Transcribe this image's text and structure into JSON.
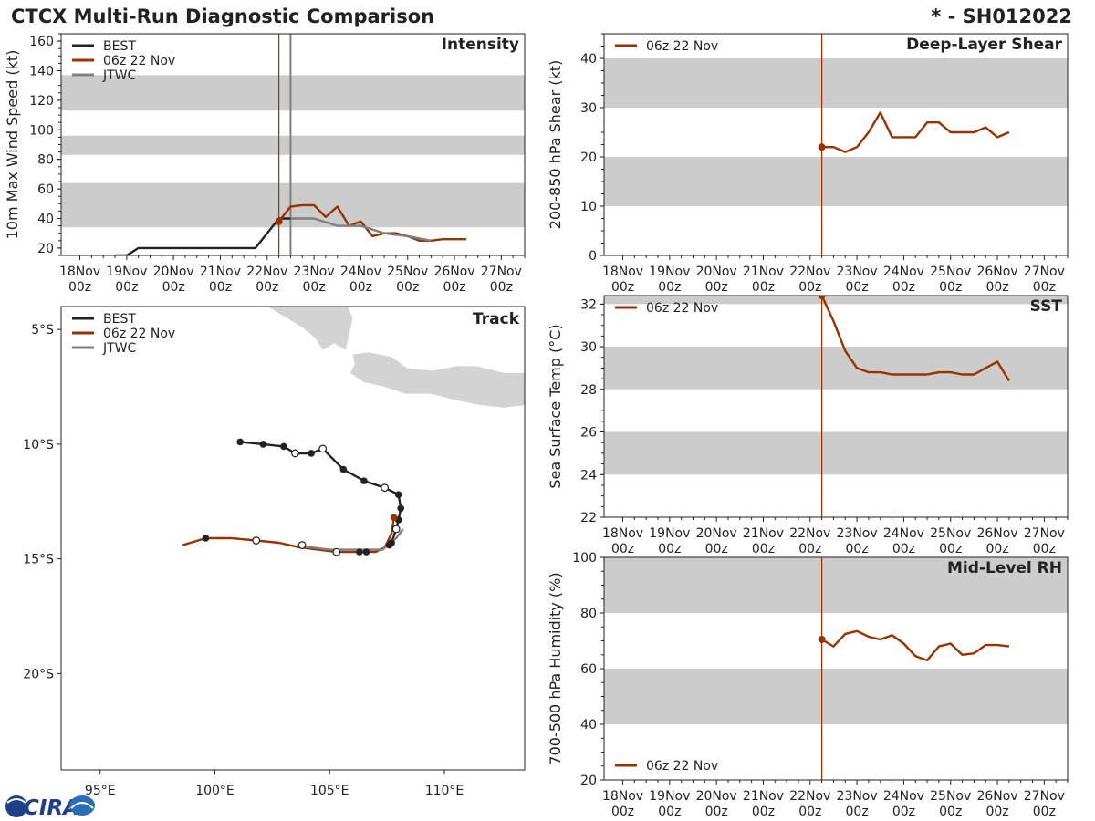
{
  "header": {
    "title": "CTCX Multi-Run Diagnostic Comparison",
    "storm_id": "* - SH012022"
  },
  "logo": {
    "text": "CIRA"
  },
  "colors": {
    "best": "#222222",
    "run": "#9a3100",
    "jtwc": "#7f7f7f",
    "band": "#cccccc",
    "land": "#d3d3d3"
  },
  "legend": {
    "best": "BEST",
    "run": "06z 22 Nov",
    "jtwc": "JTWC"
  },
  "time_axis": {
    "labels": [
      [
        "18Nov",
        "00z"
      ],
      [
        "19Nov",
        "00z"
      ],
      [
        "20Nov",
        "00z"
      ],
      [
        "21Nov",
        "00z"
      ],
      [
        "22Nov",
        "00z"
      ],
      [
        "23Nov",
        "00z"
      ],
      [
        "24Nov",
        "00z"
      ],
      [
        "25Nov",
        "00z"
      ],
      [
        "26Nov",
        "00z"
      ],
      [
        "27Nov",
        "00z"
      ]
    ]
  },
  "chart_data": [
    {
      "id": "intensity",
      "type": "line",
      "title": "Intensity",
      "ylabel": "10m Max Wind Speed (kt)",
      "xlim": [
        17.6,
        27.5
      ],
      "ylim": [
        15,
        165
      ],
      "yticks": [
        20,
        40,
        60,
        80,
        100,
        120,
        140,
        160
      ],
      "bands": [
        [
          34,
          64
        ],
        [
          83,
          96
        ],
        [
          113,
          137
        ]
      ],
      "init_lines": [
        22.25,
        22.5
      ],
      "legend_entries": [
        "best",
        "run",
        "jtwc"
      ],
      "series": [
        {
          "name": "BEST",
          "key": "best",
          "x": [
            18.75,
            19.0,
            19.25,
            21.75,
            22.25,
            22.5
          ],
          "y": [
            15,
            15,
            20,
            20,
            40,
            40
          ]
        },
        {
          "name": "06z 22 Nov",
          "key": "run",
          "x": [
            22.25,
            22.5,
            22.75,
            23.0,
            23.25,
            23.5,
            23.75,
            24.0,
            24.25,
            24.5,
            24.75,
            25.0,
            25.25,
            25.5,
            25.75,
            26.0,
            26.25
          ],
          "y": [
            38,
            48,
            49,
            49,
            41,
            48,
            35,
            38,
            28,
            30,
            30,
            28,
            25,
            25,
            26,
            26,
            26
          ],
          "start_marker": true
        },
        {
          "name": "JTWC",
          "key": "jtwc",
          "x": [
            22.5,
            23.0,
            23.5,
            24.0,
            24.5,
            25.0,
            25.5
          ],
          "y": [
            40,
            40,
            35,
            35,
            30,
            28,
            25
          ]
        }
      ]
    },
    {
      "id": "shear",
      "type": "line",
      "title": "Deep-Layer Shear",
      "ylabel": "200-850 hPa Shear (kt)",
      "xlim": [
        17.6,
        27.5
      ],
      "ylim": [
        0,
        45
      ],
      "yticks": [
        0,
        10,
        20,
        30,
        40
      ],
      "bands": [
        [
          10,
          20
        ],
        [
          30,
          40
        ]
      ],
      "init_lines": [
        22.25
      ],
      "legend_entries": [
        "run"
      ],
      "series": [
        {
          "name": "06z 22 Nov",
          "key": "run",
          "x": [
            22.25,
            22.5,
            22.75,
            23.0,
            23.25,
            23.5,
            23.75,
            24.0,
            24.25,
            24.5,
            24.75,
            25.0,
            25.25,
            25.5,
            25.75,
            26.0,
            26.25
          ],
          "y": [
            22,
            22,
            21,
            22,
            25,
            29,
            24,
            24,
            24,
            27,
            27,
            25,
            25,
            25,
            26,
            24,
            25
          ],
          "start_marker": true
        }
      ]
    },
    {
      "id": "sst",
      "type": "line",
      "title": "SST",
      "ylabel": "Sea Surface Temp (°C)",
      "xlim": [
        17.6,
        27.5
      ],
      "ylim": [
        22,
        32.4
      ],
      "yticks": [
        22,
        24,
        26,
        28,
        30,
        32
      ],
      "bands": [
        [
          24,
          26
        ],
        [
          28,
          30
        ],
        [
          32,
          33
        ]
      ],
      "init_lines": [
        22.25
      ],
      "legend_entries": [
        "run"
      ],
      "series": [
        {
          "name": "06z 22 Nov",
          "key": "run",
          "x": [
            22.25,
            22.5,
            22.75,
            23.0,
            23.25,
            23.5,
            23.75,
            24.0,
            24.25,
            24.5,
            24.75,
            25.0,
            25.25,
            25.5,
            25.75,
            26.0,
            26.25
          ],
          "y": [
            32.4,
            31.2,
            29.8,
            29.0,
            28.8,
            28.8,
            28.7,
            28.7,
            28.7,
            28.7,
            28.8,
            28.8,
            28.7,
            28.7,
            29.0,
            29.3,
            28.4
          ],
          "start_marker": true
        }
      ]
    },
    {
      "id": "rh",
      "type": "line",
      "title": "Mid-Level RH",
      "ylabel": "700-500 hPa Humidity (%)",
      "xlim": [
        17.6,
        27.5
      ],
      "ylim": [
        20,
        100
      ],
      "yticks": [
        20,
        40,
        60,
        80,
        100
      ],
      "bands": [
        [
          40,
          60
        ],
        [
          80,
          100
        ]
      ],
      "init_lines": [
        22.25
      ],
      "legend_entries": [
        "run"
      ],
      "legend_position": "lower-left",
      "series": [
        {
          "name": "06z 22 Nov",
          "key": "run",
          "x": [
            22.25,
            22.5,
            22.75,
            23.0,
            23.25,
            23.5,
            23.75,
            24.0,
            24.25,
            24.5,
            24.75,
            25.0,
            25.25,
            25.5,
            25.75,
            26.0,
            26.25
          ],
          "y": [
            70.5,
            68,
            72.5,
            73.5,
            71.5,
            70.5,
            72,
            69,
            64.5,
            63,
            68,
            69,
            65,
            65.5,
            68.5,
            68.5,
            68
          ],
          "start_marker": true
        }
      ]
    },
    {
      "id": "track",
      "type": "scatter",
      "title": "Track",
      "xlim": [
        93.3,
        113.5
      ],
      "ylim": [
        -24.2,
        -4.0
      ],
      "xticks": [
        95,
        100,
        105,
        110
      ],
      "xtick_labels": [
        "95°E",
        "100°E",
        "105°E",
        "110°E"
      ],
      "yticks": [
        -5,
        -10,
        -15,
        -20
      ],
      "ytick_labels": [
        "5°S",
        "10°S",
        "15°S",
        "20°S"
      ],
      "legend_entries": [
        "best",
        "run",
        "jtwc"
      ],
      "land": [
        [
          [
            102.3,
            -4.0
          ],
          [
            103.8,
            -4.9
          ],
          [
            104.4,
            -5.4
          ],
          [
            104.7,
            -5.9
          ],
          [
            105.2,
            -5.6
          ],
          [
            105.7,
            -5.9
          ],
          [
            106.0,
            -4.5
          ],
          [
            105.8,
            -4.0
          ]
        ],
        [
          [
            106.0,
            -6.1
          ],
          [
            106.7,
            -6.0
          ],
          [
            107.7,
            -6.2
          ],
          [
            108.4,
            -6.7
          ],
          [
            109.5,
            -6.8
          ],
          [
            110.5,
            -6.6
          ],
          [
            111.4,
            -6.6
          ],
          [
            112.6,
            -6.9
          ],
          [
            113.5,
            -7.0
          ],
          [
            113.5,
            -8.3
          ],
          [
            112.6,
            -8.4
          ],
          [
            111.6,
            -8.3
          ],
          [
            110.6,
            -8.1
          ],
          [
            109.4,
            -7.8
          ],
          [
            108.3,
            -7.8
          ],
          [
            107.4,
            -7.5
          ],
          [
            106.5,
            -7.3
          ],
          [
            105.9,
            -6.9
          ],
          [
            106.1,
            -6.5
          ]
        ],
        [
          [
            112.4,
            -6.9
          ],
          [
            113.5,
            -6.9
          ],
          [
            113.5,
            -7.2
          ],
          [
            112.7,
            -7.2
          ]
        ]
      ],
      "series": [
        {
          "name": "BEST",
          "key": "best",
          "lon": [
            101.1,
            102.1,
            103.0,
            103.5,
            104.2,
            104.7,
            105.6,
            106.5,
            107.4,
            108.0,
            108.1,
            108.0,
            107.9,
            107.7,
            107.6
          ],
          "lat": [
            -9.9,
            -10.0,
            -10.1,
            -10.4,
            -10.4,
            -10.2,
            -11.1,
            -11.6,
            -11.9,
            -12.2,
            -12.8,
            -13.3,
            -13.7,
            -14.3,
            -14.4
          ],
          "hollow": [
            false,
            false,
            false,
            true,
            false,
            true,
            false,
            false,
            true,
            false,
            false,
            false,
            true,
            false,
            false
          ]
        },
        {
          "name": "06z 22 Nov",
          "key": "run",
          "lon": [
            107.8,
            107.7,
            107.4,
            107.0,
            106.5,
            106.0,
            105.3,
            104.5,
            103.7,
            102.8,
            101.8,
            100.7,
            99.6,
            98.6
          ],
          "lat": [
            -13.2,
            -13.9,
            -14.5,
            -14.7,
            -14.7,
            -14.7,
            -14.7,
            -14.6,
            -14.5,
            -14.3,
            -14.2,
            -14.1,
            -14.1,
            -14.4
          ],
          "hollow": [
            false,
            false,
            false,
            false,
            false,
            false,
            false,
            false,
            false,
            false,
            false,
            false,
            false,
            false
          ]
        },
        {
          "name": "JTWC",
          "key": "jtwc",
          "lon": [
            108.2,
            107.9,
            107.3,
            106.7,
            105.9,
            105.0,
            104.2,
            103.8
          ],
          "lat": [
            -13.7,
            -14.1,
            -14.6,
            -14.6,
            -14.6,
            -14.6,
            -14.5,
            -14.5
          ],
          "hollow": [
            false,
            false,
            false,
            false,
            false,
            false,
            false,
            false
          ]
        }
      ],
      "extra_points": [
        {
          "key": "best",
          "lon": [
            99.6,
            101.8,
            103.8,
            105.3,
            106.3,
            106.6
          ],
          "lat": [
            -14.1,
            -14.2,
            -14.4,
            -14.7,
            -14.7,
            -14.7
          ],
          "hollow": [
            false,
            true,
            true,
            true,
            false,
            false
          ]
        }
      ]
    }
  ]
}
